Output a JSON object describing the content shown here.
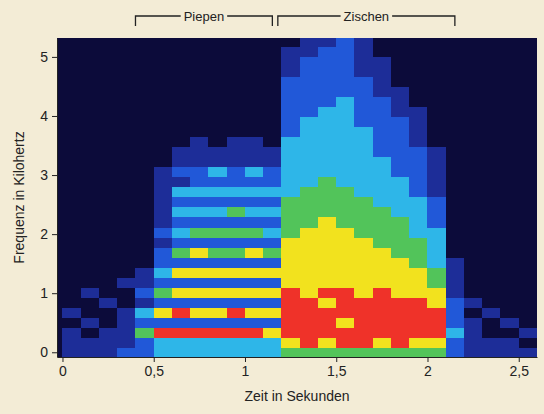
{
  "chart_data": {
    "type": "heatmap",
    "x_label": "Zeit in Sekunden",
    "y_label": "Frequenz in Kilohertz",
    "xlim": [
      -0.03,
      2.6
    ],
    "ylim": [
      -0.08,
      5.32
    ],
    "xticks": [
      0,
      {
        "value": 0.5,
        "label": "0,5"
      },
      1,
      {
        "value": 1.5,
        "label": "1,5"
      },
      2,
      {
        "value": 2.5,
        "label": "2,5"
      }
    ],
    "yticks": [
      0,
      1,
      2,
      3,
      4,
      5
    ],
    "annotations": [
      {
        "text": "Piepen",
        "x": [
          0.4,
          1.15
        ]
      },
      {
        "text": "Zischen",
        "x": [
          1.18,
          2.15
        ]
      }
    ],
    "cells": {
      "x": [
        0,
        0.1,
        0.2,
        0.3,
        0.4,
        0.5,
        0.6,
        0.7,
        0.8,
        0.9,
        1.0,
        1.1,
        1.2,
        1.3,
        1.4,
        1.5,
        1.6,
        1.7,
        1.8,
        1.9,
        2.0,
        2.1,
        2.2,
        2.3,
        2.4,
        2.5
      ],
      "y": [
        -0.09,
        0.08,
        0.25,
        0.42,
        0.59,
        0.76,
        0.93,
        1.1,
        1.27,
        1.44,
        1.61,
        1.78,
        1.95,
        2.12,
        2.29,
        2.46,
        2.63,
        2.8,
        2.97,
        3.14,
        3.31,
        3.48,
        3.65,
        3.82,
        3.99,
        4.16,
        4.33,
        4.5,
        4.67,
        4.84,
        5.01,
        5.18
      ],
      "zlim": [
        0,
        6
      ],
      "values": [
        [
          1,
          1,
          1,
          2,
          2,
          3,
          3,
          3,
          3,
          3,
          3,
          3,
          4,
          4,
          4,
          4,
          4,
          4,
          4,
          4,
          4,
          2,
          1,
          1,
          1,
          1
        ],
        [
          1,
          1,
          1,
          1,
          2,
          3,
          3,
          3,
          3,
          3,
          3,
          3,
          5,
          6,
          5,
          6,
          6,
          5,
          6,
          5,
          5,
          2,
          1,
          1,
          1,
          0
        ],
        [
          1,
          0,
          1,
          1,
          4,
          6,
          6,
          6,
          6,
          6,
          6,
          5,
          6,
          6,
          6,
          6,
          6,
          6,
          6,
          6,
          6,
          3,
          1,
          0,
          0,
          1
        ],
        [
          0,
          1,
          0,
          1,
          2,
          2,
          2,
          2,
          2,
          2,
          2,
          2,
          6,
          6,
          6,
          5,
          6,
          6,
          6,
          6,
          6,
          2,
          1,
          0,
          1,
          0
        ],
        [
          1,
          0,
          0,
          1,
          3,
          5,
          6,
          5,
          5,
          6,
          5,
          5,
          6,
          6,
          6,
          6,
          6,
          6,
          6,
          6,
          6,
          2,
          0,
          1,
          0,
          0
        ],
        [
          0,
          0,
          1,
          0,
          1,
          2,
          2,
          2,
          2,
          2,
          2,
          2,
          6,
          6,
          5,
          6,
          6,
          6,
          6,
          6,
          5,
          2,
          1,
          0,
          0,
          0
        ],
        [
          0,
          1,
          0,
          0,
          2,
          4,
          5,
          5,
          5,
          5,
          5,
          5,
          6,
          5,
          6,
          6,
          5,
          6,
          5,
          5,
          5,
          1,
          0,
          0,
          0,
          0
        ],
        [
          0,
          0,
          0,
          1,
          1,
          2,
          2,
          2,
          2,
          2,
          2,
          2,
          5,
          5,
          5,
          5,
          5,
          5,
          5,
          5,
          4,
          1,
          0,
          0,
          0,
          0
        ],
        [
          0,
          0,
          0,
          0,
          1,
          3,
          5,
          5,
          5,
          5,
          5,
          5,
          5,
          5,
          5,
          5,
          5,
          5,
          5,
          5,
          4,
          1,
          0,
          0,
          0,
          0
        ],
        [
          0,
          0,
          0,
          0,
          0,
          2,
          2,
          2,
          2,
          2,
          2,
          2,
          5,
          5,
          5,
          5,
          5,
          5,
          5,
          4,
          3,
          1,
          0,
          0,
          0,
          0
        ],
        [
          0,
          0,
          0,
          0,
          0,
          2,
          4,
          5,
          4,
          4,
          5,
          4,
          5,
          5,
          5,
          5,
          5,
          5,
          4,
          4,
          3,
          0,
          0,
          0,
          0,
          0
        ],
        [
          0,
          0,
          0,
          0,
          0,
          1,
          2,
          2,
          2,
          2,
          2,
          2,
          5,
          5,
          5,
          5,
          5,
          4,
          4,
          4,
          3,
          0,
          0,
          0,
          0,
          0
        ],
        [
          0,
          0,
          0,
          0,
          0,
          2,
          3,
          4,
          4,
          4,
          4,
          3,
          4,
          5,
          5,
          5,
          4,
          4,
          4,
          3,
          3,
          0,
          0,
          0,
          0,
          0
        ],
        [
          0,
          0,
          0,
          0,
          0,
          1,
          2,
          2,
          2,
          2,
          2,
          2,
          4,
          4,
          5,
          4,
          4,
          4,
          4,
          3,
          2,
          0,
          0,
          0,
          0,
          0
        ],
        [
          0,
          0,
          0,
          0,
          0,
          1,
          3,
          3,
          3,
          4,
          3,
          3,
          4,
          4,
          4,
          4,
          4,
          4,
          3,
          3,
          2,
          0,
          0,
          0,
          0,
          0
        ],
        [
          0,
          0,
          0,
          0,
          0,
          1,
          2,
          2,
          2,
          2,
          2,
          2,
          4,
          4,
          4,
          4,
          4,
          3,
          3,
          3,
          2,
          0,
          0,
          0,
          0,
          0
        ],
        [
          0,
          0,
          0,
          0,
          0,
          1,
          3,
          3,
          3,
          3,
          3,
          3,
          3,
          4,
          4,
          4,
          3,
          3,
          3,
          2,
          1,
          0,
          0,
          0,
          0,
          0
        ],
        [
          0,
          0,
          0,
          0,
          0,
          1,
          1,
          2,
          2,
          2,
          2,
          2,
          3,
          3,
          4,
          3,
          3,
          3,
          3,
          2,
          1,
          0,
          0,
          0,
          0,
          0
        ],
        [
          0,
          0,
          0,
          0,
          0,
          1,
          2,
          2,
          3,
          2,
          3,
          2,
          3,
          3,
          3,
          3,
          3,
          3,
          2,
          2,
          1,
          0,
          0,
          0,
          0,
          0
        ],
        [
          0,
          0,
          0,
          0,
          0,
          0,
          1,
          1,
          1,
          1,
          1,
          1,
          3,
          3,
          3,
          3,
          3,
          3,
          2,
          2,
          1,
          0,
          0,
          0,
          0,
          0
        ],
        [
          0,
          0,
          0,
          0,
          0,
          0,
          1,
          1,
          1,
          1,
          1,
          1,
          3,
          3,
          3,
          3,
          3,
          2,
          2,
          2,
          1,
          0,
          0,
          0,
          0,
          0
        ],
        [
          0,
          0,
          0,
          0,
          0,
          0,
          0,
          1,
          0,
          1,
          1,
          0,
          3,
          3,
          3,
          3,
          3,
          2,
          2,
          1,
          0,
          0,
          0,
          0,
          0,
          0
        ],
        [
          0,
          0,
          0,
          0,
          0,
          0,
          0,
          0,
          0,
          0,
          0,
          0,
          2,
          3,
          3,
          3,
          3,
          2,
          2,
          1,
          0,
          0,
          0,
          0,
          0,
          0
        ],
        [
          0,
          0,
          0,
          0,
          0,
          0,
          0,
          0,
          0,
          0,
          0,
          0,
          2,
          3,
          3,
          3,
          2,
          2,
          2,
          1,
          0,
          0,
          0,
          0,
          0,
          0
        ],
        [
          0,
          0,
          0,
          0,
          0,
          0,
          0,
          0,
          0,
          0,
          0,
          0,
          2,
          2,
          3,
          3,
          2,
          2,
          1,
          1,
          0,
          0,
          0,
          0,
          0,
          0
        ],
        [
          0,
          0,
          0,
          0,
          0,
          0,
          0,
          0,
          0,
          0,
          0,
          0,
          2,
          2,
          2,
          3,
          2,
          2,
          1,
          0,
          0,
          0,
          0,
          0,
          0,
          0
        ],
        [
          0,
          0,
          0,
          0,
          0,
          0,
          0,
          0,
          0,
          0,
          0,
          0,
          2,
          2,
          2,
          2,
          2,
          1,
          1,
          0,
          0,
          0,
          0,
          0,
          0,
          0
        ],
        [
          0,
          0,
          0,
          0,
          0,
          0,
          0,
          0,
          0,
          0,
          0,
          0,
          2,
          2,
          2,
          2,
          2,
          1,
          0,
          0,
          0,
          0,
          0,
          0,
          0,
          0
        ],
        [
          0,
          0,
          0,
          0,
          0,
          0,
          0,
          0,
          0,
          0,
          0,
          0,
          1,
          2,
          2,
          2,
          1,
          1,
          0,
          0,
          0,
          0,
          0,
          0,
          0,
          0
        ],
        [
          0,
          0,
          0,
          0,
          0,
          0,
          0,
          0,
          0,
          0,
          0,
          0,
          1,
          2,
          2,
          2,
          1,
          1,
          0,
          0,
          0,
          0,
          0,
          0,
          0,
          0
        ],
        [
          0,
          0,
          0,
          0,
          0,
          0,
          0,
          0,
          0,
          0,
          0,
          0,
          1,
          1,
          2,
          2,
          1,
          0,
          0,
          0,
          0,
          0,
          0,
          0,
          0,
          0
        ],
        [
          0,
          0,
          0,
          0,
          0,
          0,
          0,
          0,
          0,
          0,
          0,
          0,
          0,
          1,
          1,
          2,
          1,
          0,
          0,
          0,
          0,
          0,
          0,
          0,
          0,
          0
        ]
      ]
    }
  }
}
